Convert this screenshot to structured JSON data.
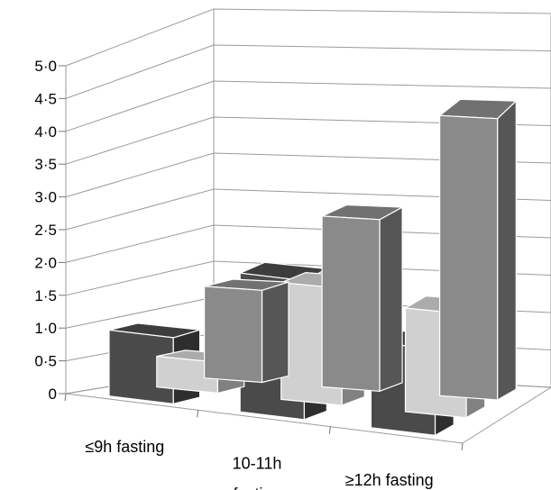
{
  "chart_data": {
    "type": "bar",
    "variant": "3d-column",
    "title": "",
    "xlabel": "",
    "ylabel": "",
    "ylim": [
      0,
      5
    ],
    "y_ticks": [
      "0",
      "0·5",
      "1·0",
      "1·5",
      "2·0",
      "2·5",
      "3·0",
      "3·5",
      "4·0",
      "4·5",
      "5·0"
    ],
    "categories": [
      [
        "≤9h fasting"
      ],
      [
        "10-11h",
        "fasting"
      ],
      [
        "≥12h fasting"
      ]
    ],
    "grid": true,
    "legend": "none",
    "series": [
      {
        "color": "#8a8a8a",
        "values": [
          1.3,
          2.4,
          3.9
        ]
      },
      {
        "color": "#d0d0d0",
        "values": [
          0.45,
          1.7,
          1.5
        ]
      },
      {
        "color": "#4a4a4a",
        "values": [
          1.0,
          2.1,
          1.3
        ]
      }
    ]
  }
}
